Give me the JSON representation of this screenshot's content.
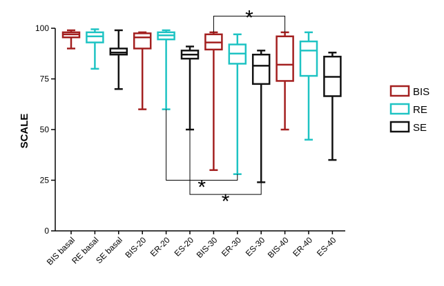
{
  "chart_data": {
    "type": "boxplot",
    "ylabel": "SCALE",
    "ylim": [
      0,
      100
    ],
    "yticks": [
      0,
      25,
      50,
      75,
      100
    ],
    "grid": false,
    "legend_placement": "right",
    "colors": {
      "BIS": "#a31f1f",
      "RE": "#1ec3c3",
      "SE": "#111111"
    },
    "legend": [
      {
        "key": "BIS",
        "label": "BIS"
      },
      {
        "key": "RE",
        "label": "RE"
      },
      {
        "key": "SE",
        "label": "SE"
      }
    ],
    "categories": [
      "BIS basal",
      "RE basal",
      "SE basal",
      "BIS-20",
      "ER-20",
      "ES-20",
      "BIS-30",
      "ER-30",
      "ES-30",
      "BIS-40",
      "ER-40",
      "ES-40"
    ],
    "boxes": [
      {
        "group": "BIS",
        "min": 90,
        "q1": 95.5,
        "median": 97,
        "q3": 98,
        "max": 99
      },
      {
        "group": "RE",
        "min": 80,
        "q1": 93,
        "median": 96,
        "q3": 98,
        "max": 99.5
      },
      {
        "group": "SE",
        "min": 70,
        "q1": 87,
        "median": 88,
        "q3": 90,
        "max": 99
      },
      {
        "group": "BIS",
        "min": 60,
        "q1": 90,
        "median": 95.5,
        "q3": 97.5,
        "max": 98
      },
      {
        "group": "RE",
        "min": 60,
        "q1": 94.5,
        "median": 96.5,
        "q3": 98,
        "max": 99
      },
      {
        "group": "SE",
        "min": 50,
        "q1": 85,
        "median": 87,
        "q3": 89,
        "max": 91
      },
      {
        "group": "BIS",
        "min": 30,
        "q1": 89.5,
        "median": 93,
        "q3": 97,
        "max": 98
      },
      {
        "group": "RE",
        "min": 28,
        "q1": 82.5,
        "median": 87.5,
        "q3": 92,
        "max": 97
      },
      {
        "group": "SE",
        "min": 24,
        "q1": 72.5,
        "median": 81.5,
        "q3": 87,
        "max": 89
      },
      {
        "group": "BIS",
        "min": 50,
        "q1": 74,
        "median": 82,
        "q3": 96,
        "max": 98
      },
      {
        "group": "RE",
        "min": 45,
        "q1": 76.5,
        "median": 89,
        "q3": 93.5,
        "max": 98
      },
      {
        "group": "SE",
        "min": 35,
        "q1": 66.5,
        "median": 76,
        "q3": 86,
        "max": 88
      }
    ],
    "annotations": [
      {
        "type": "bracket",
        "from": 6,
        "to": 9,
        "y": 106,
        "dir": "up",
        "label": "*"
      },
      {
        "type": "bracket",
        "from": 4,
        "to": 7,
        "y": 25,
        "dir": "down",
        "label": "*"
      },
      {
        "type": "bracket",
        "from": 5,
        "to": 8,
        "y": 18,
        "dir": "down",
        "label": "*"
      }
    ]
  }
}
